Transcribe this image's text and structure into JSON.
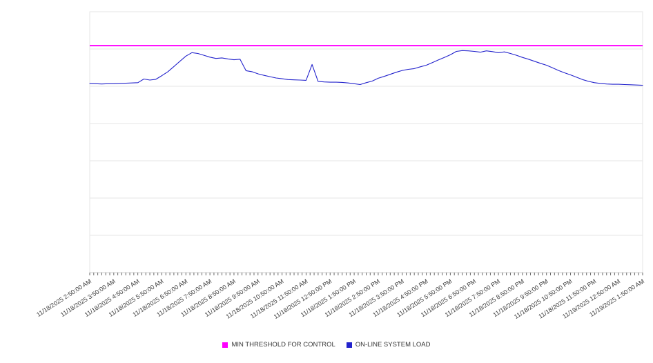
{
  "legend": {
    "items": [
      {
        "label": "MIN THRESHOLD FOR CONTROL",
        "color": "#ff00ff"
      },
      {
        "label": "ON-LINE SYSTEM LOAD",
        "color": "#2222cc"
      }
    ]
  },
  "chart_data": {
    "type": "line",
    "title": "",
    "xlabel": "",
    "ylabel": "",
    "legend_position": "bottom",
    "grid": "horizontal",
    "y_axis_labels_visible": false,
    "y_scale_note": "y axis has no visible tick labels; values normalized 0-100 of plot height",
    "ylim": [
      0,
      100
    ],
    "grid_divisions": 7,
    "x_sample_interval_minutes": 15,
    "x_span_hours": 23,
    "categories": [
      "11/18/2025 2:50:00 AM",
      "11/18/2025 3:50:00 AM",
      "11/18/2025 4:50:00 AM",
      "11/18/2025 5:50:00 AM",
      "11/18/2025 6:50:00 AM",
      "11/18/2025 7:50:00 AM",
      "11/18/2025 8:50:00 AM",
      "11/18/2025 9:50:00 AM",
      "11/18/2025 10:50:00 AM",
      "11/18/2025 11:50:00 AM",
      "11/18/2025 12:50:00 PM",
      "11/18/2025 1:50:00 PM",
      "11/18/2025 2:50:00 PM",
      "11/18/2025 3:50:00 PM",
      "11/18/2025 4:50:00 PM",
      "11/18/2025 5:50:00 PM",
      "11/18/2025 6:50:00 PM",
      "11/18/2025 7:50:00 PM",
      "11/18/2025 8:50:00 PM",
      "11/18/2025 9:50:00 PM",
      "11/18/2025 10:50:00 PM",
      "11/18/2025 11:50:00 PM",
      "11/19/2025 12:50:00 AM",
      "11/19/2025 1:50:00 AM"
    ],
    "series": [
      {
        "name": "MIN THRESHOLD FOR CONTROL",
        "color": "#ff00ff",
        "style": "constant",
        "constant_value": 87.0
      },
      {
        "name": "ON-LINE SYSTEM LOAD",
        "color": "#2222cc",
        "style": "line",
        "values": [
          72.5,
          72.4,
          72.3,
          72.4,
          72.4,
          72.5,
          72.6,
          72.7,
          72.8,
          74.2,
          73.8,
          74.1,
          75.5,
          77.0,
          79.0,
          81.0,
          83.0,
          84.3,
          84.0,
          83.3,
          82.6,
          82.1,
          82.3,
          81.9,
          81.6,
          81.8,
          77.4,
          77.0,
          76.2,
          75.6,
          75.1,
          74.6,
          74.3,
          74.0,
          73.9,
          73.8,
          73.7,
          79.8,
          73.3,
          73.1,
          73.0,
          73.0,
          72.9,
          72.7,
          72.4,
          72.1,
          72.8,
          73.4,
          74.5,
          75.2,
          76.0,
          76.8,
          77.5,
          77.9,
          78.2,
          78.9,
          79.5,
          80.5,
          81.5,
          82.5,
          83.5,
          84.8,
          85.1,
          85.0,
          84.8,
          84.5,
          85.0,
          84.7,
          84.3,
          84.6,
          84.0,
          83.3,
          82.5,
          81.8,
          81.0,
          80.2,
          79.5,
          78.5,
          77.5,
          76.6,
          75.8,
          74.9,
          74.0,
          73.3,
          72.8,
          72.5,
          72.3,
          72.2,
          72.2,
          72.1,
          72.0,
          71.9,
          71.8
        ]
      }
    ],
    "colors": {
      "grid": "#e6e6e6",
      "axis": "#cccccc",
      "tick": "#666666",
      "label_text": "#3c3c3c"
    }
  }
}
